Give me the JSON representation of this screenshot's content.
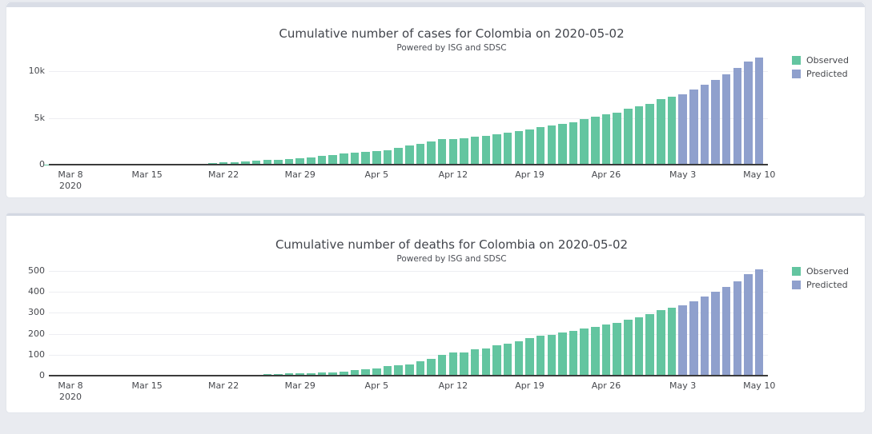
{
  "page": {
    "background_color": "#e9ebf0",
    "card_background": "#ffffff"
  },
  "colors": {
    "observed": "#63c5a0",
    "predicted": "#8fa0cd",
    "gridline": "#edeef2",
    "axis_text": "#47494e"
  },
  "chart_data": [
    {
      "type": "bar",
      "title": "Cumulative number of cases for Colombia on 2020-05-02",
      "subtitle": "Powered by ISG and SDSC",
      "xlabel": "",
      "ylabel": "",
      "ylim": [
        0,
        11700
      ],
      "grid": true,
      "legend_position": "outside-top-right",
      "y_ticks": [
        {
          "label": "0",
          "value": 0
        },
        {
          "label": "5k",
          "value": 5000
        },
        {
          "label": "10k",
          "value": 10000
        }
      ],
      "x_ticks": [
        {
          "label": "Mar 8",
          "day_index": 2
        },
        {
          "label": "Mar 15",
          "day_index": 9
        },
        {
          "label": "Mar 22",
          "day_index": 16
        },
        {
          "label": "Mar 29",
          "day_index": 23
        },
        {
          "label": "Apr 5",
          "day_index": 30
        },
        {
          "label": "Apr 12",
          "day_index": 37
        },
        {
          "label": "Apr 19",
          "day_index": 44
        },
        {
          "label": "Apr 26",
          "day_index": 51
        },
        {
          "label": "May 3",
          "day_index": 58
        },
        {
          "label": "May 10",
          "day_index": 65
        }
      ],
      "x_axis_year_label": "2020",
      "series": [
        {
          "name": "Observed",
          "color": "#63c5a0",
          "start_date": "2020-03-06",
          "end_date": "2020-05-02",
          "start_index": 0,
          "values": [
            1,
            1,
            1,
            3,
            3,
            9,
            9,
            16,
            22,
            34,
            54,
            65,
            93,
            102,
            128,
            196,
            231,
            277,
            378,
            470,
            491,
            539,
            608,
            702,
            798,
            906,
            1065,
            1161,
            1267,
            1406,
            1485,
            1579,
            1780,
            2054,
            2223,
            2473,
            2709,
            2776,
            2852,
            2979,
            3105,
            3233,
            3439,
            3621,
            3792,
            3977,
            4149,
            4356,
            4561,
            4881,
            5142,
            5379,
            5597,
            5949,
            6207,
            6507,
            7006,
            7285
          ]
        },
        {
          "name": "Predicted",
          "color": "#8fa0cd",
          "start_date": "2020-05-03",
          "end_date": "2020-05-10",
          "start_index": 58,
          "values": [
            7550,
            8050,
            8550,
            9050,
            9620,
            10300,
            11000,
            11450
          ]
        }
      ]
    },
    {
      "type": "bar",
      "title": "Cumulative number of deaths for Colombia on 2020-05-02",
      "subtitle": "Powered by ISG and SDSC",
      "xlabel": "",
      "ylabel": "",
      "ylim": [
        0,
        520
      ],
      "grid": true,
      "legend_position": "outside-top-right",
      "y_ticks": [
        {
          "label": "0",
          "value": 0
        },
        {
          "label": "100",
          "value": 100
        },
        {
          "label": "200",
          "value": 200
        },
        {
          "label": "300",
          "value": 300
        },
        {
          "label": "400",
          "value": 400
        },
        {
          "label": "500",
          "value": 500
        }
      ],
      "x_ticks": [
        {
          "label": "Mar 8",
          "day_index": 2
        },
        {
          "label": "Mar 15",
          "day_index": 9
        },
        {
          "label": "Mar 22",
          "day_index": 16
        },
        {
          "label": "Mar 29",
          "day_index": 23
        },
        {
          "label": "Apr 5",
          "day_index": 30
        },
        {
          "label": "Apr 12",
          "day_index": 37
        },
        {
          "label": "Apr 19",
          "day_index": 44
        },
        {
          "label": "Apr 26",
          "day_index": 51
        },
        {
          "label": "May 3",
          "day_index": 58
        },
        {
          "label": "May 10",
          "day_index": 65
        }
      ],
      "x_axis_year_label": "2020",
      "series": [
        {
          "name": "Observed",
          "color": "#63c5a0",
          "start_date": "2020-03-06",
          "end_date": "2020-05-02",
          "start_index": 0,
          "values": [
            0,
            0,
            0,
            0,
            0,
            0,
            0,
            0,
            0,
            0,
            0,
            0,
            0,
            0,
            0,
            1,
            2,
            3,
            3,
            4,
            6,
            6,
            10,
            10,
            12,
            16,
            17,
            19,
            25,
            32,
            35,
            46,
            50,
            55,
            69,
            80,
            100,
            109,
            112,
            127,
            131,
            144,
            153,
            166,
            179,
            189,
            196,
            206,
            215,
            225,
            233,
            244,
            253,
            269,
            278,
            293,
            314,
            324
          ]
        },
        {
          "name": "Predicted",
          "color": "#8fa0cd",
          "start_date": "2020-05-03",
          "end_date": "2020-05-10",
          "start_index": 58,
          "values": [
            335,
            355,
            376,
            400,
            425,
            452,
            483,
            508
          ]
        }
      ]
    }
  ]
}
